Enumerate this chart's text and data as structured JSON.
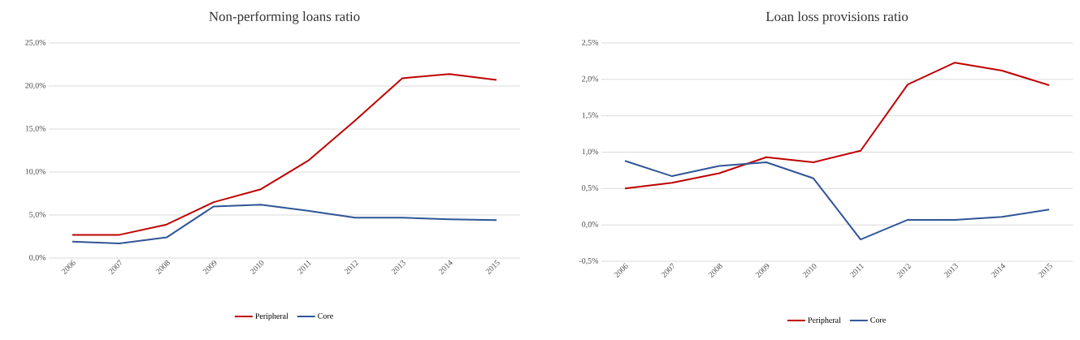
{
  "chart_data": [
    {
      "type": "line",
      "title": "Non-performing loans ratio",
      "categories": [
        "2006",
        "2007",
        "2008",
        "2009",
        "2010",
        "2011",
        "2012",
        "2013",
        "2014",
        "2015"
      ],
      "series": [
        {
          "name": "Peripheral",
          "color": "#c00000",
          "values": [
            2.7,
            2.7,
            3.9,
            6.5,
            8.0,
            11.3,
            16.0,
            20.9,
            21.4,
            20.7
          ]
        },
        {
          "name": "Core",
          "color": "#2f5597",
          "values": [
            1.9,
            1.7,
            2.4,
            6.0,
            6.2,
            5.5,
            4.7,
            4.7,
            4.5,
            4.4
          ]
        }
      ],
      "ylim": [
        0,
        25
      ],
      "yticks": [
        {
          "value": 0,
          "label": "0,0%"
        },
        {
          "value": 5,
          "label": "5,0%"
        },
        {
          "value": 10,
          "label": "10,0%"
        },
        {
          "value": 15,
          "label": "15,0%"
        },
        {
          "value": 20,
          "label": "20,0%"
        },
        {
          "value": 25,
          "label": "25,0%"
        }
      ],
      "grid": "y",
      "legend": "bottom",
      "line_style": "solid"
    },
    {
      "type": "line",
      "title": "Loan loss provisions ratio",
      "categories": [
        "2006",
        "2007",
        "2008",
        "2009",
        "2010",
        "2011",
        "2012",
        "2013",
        "2014",
        "2015"
      ],
      "series": [
        {
          "name": "Peripheral",
          "color": "#c00000",
          "values": [
            0.5,
            0.58,
            0.71,
            0.93,
            0.86,
            1.02,
            1.93,
            2.23,
            2.12,
            1.92
          ]
        },
        {
          "name": "Core",
          "color": "#2f5597",
          "values": [
            0.88,
            0.67,
            0.81,
            0.86,
            0.64,
            -0.2,
            0.07,
            0.07,
            0.11,
            0.21
          ]
        }
      ],
      "ylim": [
        -0.5,
        2.5
      ],
      "yticks": [
        {
          "value": -0.5,
          "label": "-0,5%"
        },
        {
          "value": 0,
          "label": "0,0%"
        },
        {
          "value": 0.5,
          "label": "0,5%"
        },
        {
          "value": 1,
          "label": "1,0%"
        },
        {
          "value": 1.5,
          "label": "1,5%"
        },
        {
          "value": 2,
          "label": "2,0%"
        },
        {
          "value": 2.5,
          "label": "2,5%"
        }
      ],
      "grid": "y",
      "legend": "bottom",
      "line_style": "solid"
    }
  ]
}
